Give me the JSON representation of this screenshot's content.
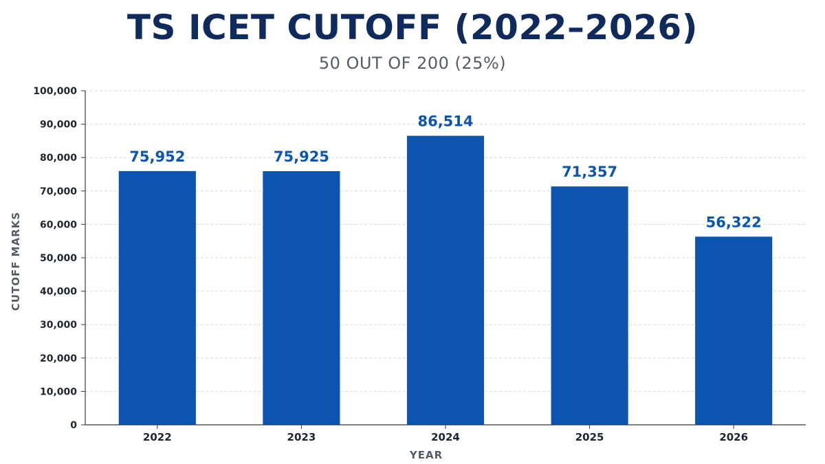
{
  "chart_data": {
    "type": "bar",
    "title": "TS ICET CUTOFF (2022–2026)",
    "subtitle": "50 OUT OF 200 (25%)",
    "xlabel": "YEAR",
    "ylabel": "CUTOFF MARKS",
    "categories": [
      "2022",
      "2023",
      "2024",
      "2025",
      "2026"
    ],
    "values": [
      75952,
      75925,
      86514,
      71357,
      56322
    ],
    "value_labels": [
      "75,952",
      "75,925",
      "86,514",
      "71,357",
      "56,322"
    ],
    "ylim": [
      0,
      100000
    ],
    "y_ticks": [
      0,
      10000,
      20000,
      30000,
      40000,
      50000,
      60000,
      70000,
      80000,
      90000,
      100000
    ],
    "y_tick_labels": [
      "0",
      "10,000",
      "20,000",
      "30,000",
      "40,000",
      "50,000",
      "60,000",
      "70,000",
      "80,000",
      "90,000",
      "100,000"
    ],
    "grid": true,
    "legend": "none",
    "colors": {
      "bar": "#0b55b0",
      "value_label": "#0b55b0",
      "title": "#0f2a5c",
      "grid": "#d6d9de",
      "axis": "#333840"
    }
  }
}
